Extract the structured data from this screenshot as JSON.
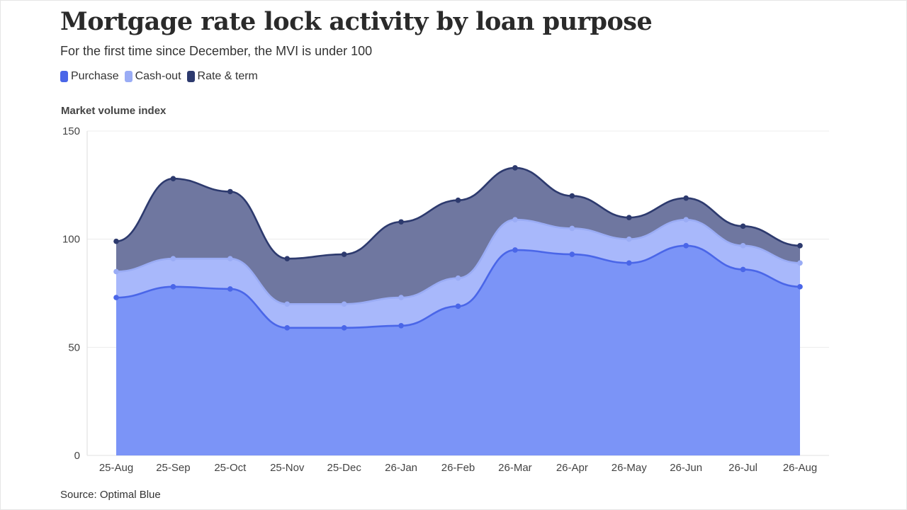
{
  "title": "Mortgage rate lock activity by loan purpose",
  "subtitle": "For the first time since December, the MVI is under 100",
  "source": "Source: Optimal Blue",
  "legend": [
    {
      "label": "Purchase",
      "color": "#4a66e8"
    },
    {
      "label": "Cash-out",
      "color": "#9aacf5"
    },
    {
      "label": "Rate & term",
      "color": "#2d3a6e"
    }
  ],
  "chart_data": {
    "type": "area",
    "stacked": false,
    "title": "Mortgage rate lock activity by loan purpose",
    "subtitle": "For the first time since December, the MVI is under 100",
    "ylabel": "Market volume index",
    "xlabel": "",
    "ylim": [
      0,
      150
    ],
    "yticks": [
      0,
      50,
      100,
      150
    ],
    "grid": true,
    "legend_position": "top-left",
    "categories": [
      "25-Aug",
      "25-Sep",
      "25-Oct",
      "25-Nov",
      "25-Dec",
      "26-Jan",
      "26-Feb",
      "26-Mar",
      "26-Apr",
      "26-May",
      "26-Jun",
      "26-Jul",
      "26-Aug"
    ],
    "series": [
      {
        "name": "Rate & term",
        "color": "#2d3a6e",
        "fill": "#6f77a0",
        "values": [
          99,
          128,
          122,
          91,
          93,
          108,
          118,
          133,
          120,
          110,
          119,
          106,
          97
        ]
      },
      {
        "name": "Cash-out",
        "color": "#9aacf5",
        "fill": "#a8b8fb",
        "values": [
          85,
          91,
          91,
          70,
          70,
          73,
          82,
          109,
          105,
          100,
          109,
          97,
          89
        ]
      },
      {
        "name": "Purchase",
        "color": "#4a66e8",
        "fill": "#7b94f7",
        "values": [
          73,
          78,
          77,
          59,
          59,
          60,
          69,
          95,
          93,
          89,
          97,
          86,
          78
        ]
      }
    ]
  }
}
